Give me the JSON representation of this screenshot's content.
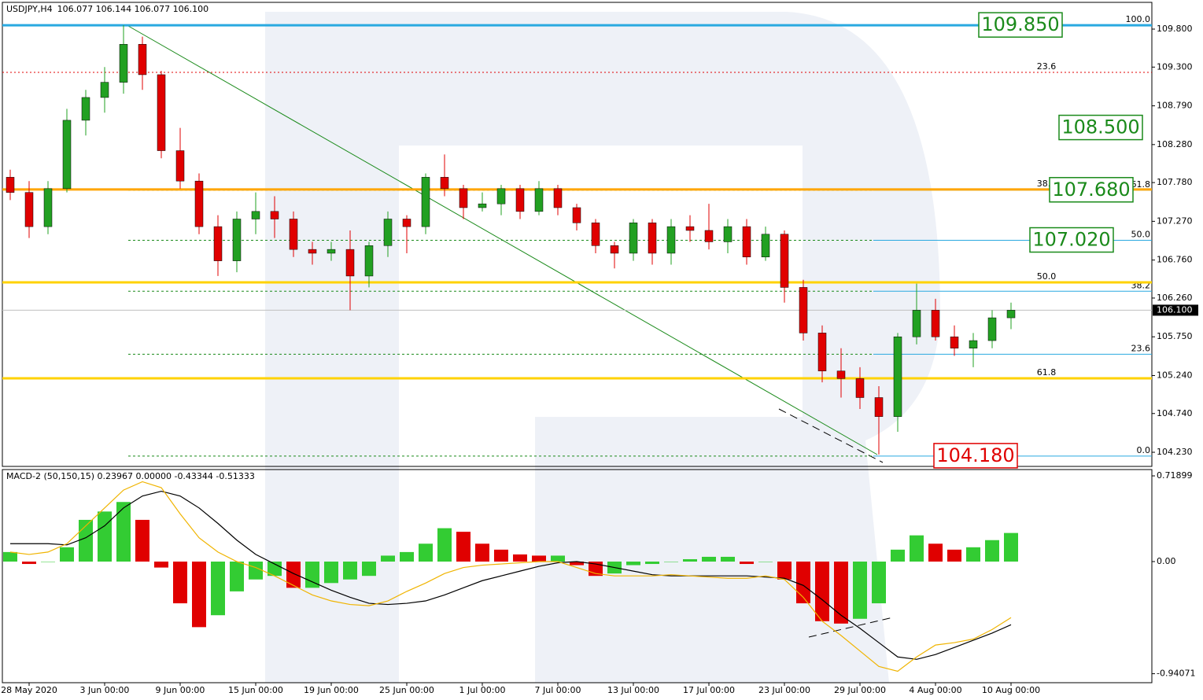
{
  "chart_data": [
    {
      "type": "candlestick",
      "title": "USDJPY,H4",
      "quote": "106.077 106.144 106.077 106.100",
      "categories": [
        null,
        "28 May 2020",
        null,
        null,
        null,
        "3 Jun 00:00",
        null,
        null,
        null,
        "9 Jun 00:00",
        null,
        null,
        null,
        "15 Jun 00:00",
        null,
        null,
        null,
        "19 Jun 00:00",
        null,
        null,
        null,
        "25 Jun 00:00",
        null,
        null,
        null,
        "1 Jul 00:00",
        null,
        null,
        null,
        "7 Jul 00:00",
        null,
        null,
        null,
        "13 Jul 00:00",
        null,
        null,
        null,
        "17 Jul 00:00",
        null,
        null,
        null,
        "23 Jul 00:00",
        null,
        null,
        null,
        "29 Jul 00:00",
        null,
        null,
        null,
        "4 Aug 00:00",
        null,
        null,
        null,
        "10 Aug 00:00"
      ],
      "open": [
        107.85,
        107.65,
        107.2,
        107.7,
        108.6,
        108.9,
        109.1,
        109.6,
        109.2,
        108.2,
        107.8,
        107.2,
        106.75,
        107.3,
        107.4,
        107.3,
        106.9,
        106.85,
        106.9,
        106.55,
        106.95,
        107.3,
        107.2,
        107.85,
        107.7,
        107.45,
        107.5,
        107.7,
        107.4,
        107.7,
        107.45,
        107.25,
        106.95,
        106.85,
        107.25,
        106.85,
        107.2,
        107.15,
        107.0,
        107.2,
        106.8,
        107.1,
        106.4,
        105.8,
        105.3,
        105.2,
        104.95,
        104.7,
        105.75,
        106.1,
        105.75,
        105.6,
        105.7,
        106.0
      ],
      "high": [
        107.95,
        107.8,
        107.8,
        108.75,
        109.0,
        109.3,
        109.85,
        109.7,
        109.25,
        108.5,
        107.9,
        107.35,
        107.4,
        107.65,
        107.6,
        107.4,
        107.0,
        107.0,
        107.15,
        107.0,
        107.4,
        107.35,
        107.9,
        108.15,
        107.75,
        107.65,
        107.75,
        107.75,
        107.8,
        107.75,
        107.5,
        107.3,
        107.0,
        107.3,
        107.3,
        107.3,
        107.35,
        107.5,
        107.3,
        107.3,
        107.2,
        107.15,
        106.5,
        105.9,
        105.6,
        105.35,
        105.1,
        105.8,
        106.45,
        106.25,
        105.9,
        105.8,
        106.1,
        106.2
      ],
      "low": [
        107.55,
        107.05,
        107.1,
        107.65,
        108.4,
        108.7,
        108.95,
        109.0,
        108.1,
        107.7,
        107.1,
        106.55,
        106.6,
        107.1,
        107.05,
        106.8,
        106.7,
        106.75,
        106.1,
        106.4,
        106.8,
        106.85,
        107.1,
        107.6,
        107.3,
        107.4,
        107.35,
        107.3,
        107.35,
        107.35,
        107.15,
        106.85,
        106.65,
        106.75,
        106.7,
        106.7,
        107.0,
        106.9,
        106.85,
        106.7,
        106.75,
        106.2,
        105.7,
        105.15,
        104.95,
        104.8,
        104.2,
        104.5,
        105.65,
        105.7,
        105.5,
        105.35,
        105.6,
        105.85
      ],
      "close": [
        107.65,
        107.2,
        107.7,
        108.6,
        108.9,
        109.1,
        109.6,
        109.2,
        108.2,
        107.8,
        107.2,
        106.75,
        107.3,
        107.4,
        107.3,
        106.9,
        106.85,
        106.9,
        106.55,
        106.95,
        107.3,
        107.2,
        107.85,
        107.7,
        107.45,
        107.5,
        107.7,
        107.4,
        107.7,
        107.45,
        107.25,
        106.95,
        106.85,
        107.25,
        106.85,
        107.2,
        107.15,
        107.0,
        107.2,
        106.8,
        107.1,
        106.4,
        105.8,
        105.3,
        105.2,
        104.95,
        104.7,
        105.75,
        106.1,
        105.75,
        105.6,
        105.7,
        106.0,
        106.1
      ],
      "up_color": "#22a022",
      "down_color": "#e00000",
      "ylim": [
        104.044,
        110.152
      ],
      "yticks": [
        {
          "value": 109.8,
          "label": "109.800"
        },
        {
          "value": 109.3,
          "label": "109.300"
        },
        {
          "value": 108.79,
          "label": "108.790"
        },
        {
          "value": 108.28,
          "label": "108.280"
        },
        {
          "value": 107.78,
          "label": "107.780"
        },
        {
          "value": 107.27,
          "label": "107.270"
        },
        {
          "value": 106.76,
          "label": "106.760"
        },
        {
          "value": 106.26,
          "label": "106.260"
        },
        {
          "value": 105.75,
          "label": "105.750"
        },
        {
          "value": 105.24,
          "label": "105.240"
        },
        {
          "value": 104.74,
          "label": "104.740"
        },
        {
          "value": 104.23,
          "label": "104.230"
        }
      ],
      "levels": [
        {
          "value": 109.85,
          "color": "#29a9e0"
        },
        {
          "value": 107.69,
          "color": "#ffa500"
        },
        {
          "value": 106.466,
          "color": "#ffd200"
        },
        {
          "value": 105.203,
          "color": "#ffd200"
        }
      ],
      "fib_left": {
        "color": "#e00000",
        "levels": [
          {
            "label": "23.6",
            "value": 109.23
          },
          {
            "label": "38.2",
            "value": 107.69
          },
          {
            "label": "50.0",
            "value": 106.466
          },
          {
            "label": "61.8",
            "value": 105.203
          }
        ]
      },
      "fib_right": {
        "color": "#1a8a1a",
        "line_color": "#29a9e0",
        "levels": [
          {
            "label": "100.0",
            "value": 109.85
          },
          {
            "label": "61.8",
            "value": 107.68
          },
          {
            "label": "50.0",
            "value": 107.02
          },
          {
            "label": "38.2",
            "value": 106.35
          },
          {
            "label": "23.6",
            "value": 105.52
          },
          {
            "label": "0.0",
            "value": 104.18
          }
        ]
      },
      "price_boxes": [
        {
          "value": 109.85,
          "label": "109.850",
          "color": "#1a8a1a"
        },
        {
          "value": 108.5,
          "label": "108.500",
          "color": "#1a8a1a"
        },
        {
          "value": 107.68,
          "label": "107.680",
          "color": "#1a8a1a"
        },
        {
          "value": 107.02,
          "label": "107.020",
          "color": "#1a8a1a"
        },
        {
          "value": 104.18,
          "label": "104.180",
          "color": "#e00000"
        }
      ],
      "last": {
        "value": 106.1,
        "label": "106.100"
      }
    },
    {
      "type": "macd",
      "title": "MACD-2 (50,150,15) 0.23967 0.00000 -0.43344 -0.51333",
      "ylim": [
        -1.016,
        0.772
      ],
      "yticks": [
        0.71899,
        {
          "value": 0,
          "label": "0.00"
        },
        -0.94071
      ],
      "up_color": "#33cc33",
      "down_color": "#e00000",
      "series": [
        {
          "name": "histogram",
          "values": [
            0.08,
            -0.02,
            0.0,
            0.12,
            0.35,
            0.42,
            0.5,
            0.35,
            -0.05,
            -0.35,
            -0.55,
            -0.45,
            -0.25,
            -0.15,
            -0.12,
            -0.22,
            -0.22,
            -0.18,
            -0.15,
            -0.12,
            0.05,
            0.08,
            0.15,
            0.28,
            0.25,
            0.15,
            0.1,
            0.06,
            0.05,
            0.05,
            -0.03,
            -0.12,
            -0.1,
            -0.03,
            -0.02,
            0.0,
            0.02,
            0.04,
            0.04,
            -0.02,
            0.0,
            -0.15,
            -0.35,
            -0.5,
            -0.52,
            -0.48,
            -0.35,
            0.1,
            0.22,
            0.15,
            0.1,
            0.12,
            0.18,
            0.24
          ]
        },
        {
          "name": "macd",
          "color": "#000000",
          "values": [
            0.15,
            0.15,
            0.15,
            0.14,
            0.2,
            0.3,
            0.45,
            0.55,
            0.59,
            0.55,
            0.45,
            0.32,
            0.18,
            0.06,
            -0.02,
            -0.1,
            -0.17,
            -0.24,
            -0.3,
            -0.35,
            -0.36,
            -0.35,
            -0.33,
            -0.28,
            -0.22,
            -0.16,
            -0.12,
            -0.08,
            -0.04,
            -0.01,
            0.0,
            -0.02,
            -0.05,
            -0.08,
            -0.11,
            -0.12,
            -0.12,
            -0.12,
            -0.12,
            -0.12,
            -0.13,
            -0.14,
            -0.2,
            -0.32,
            -0.45,
            -0.56,
            -0.68,
            -0.8,
            -0.82,
            -0.78,
            -0.72,
            -0.66,
            -0.6,
            -0.53
          ]
        },
        {
          "name": "signal",
          "color": "#f0b400",
          "values": [
            0.08,
            0.06,
            0.08,
            0.15,
            0.3,
            0.45,
            0.6,
            0.67,
            0.62,
            0.4,
            0.2,
            0.08,
            0.0,
            -0.05,
            -0.12,
            -0.2,
            -0.28,
            -0.33,
            -0.36,
            -0.37,
            -0.33,
            -0.25,
            -0.18,
            -0.1,
            -0.05,
            -0.03,
            -0.02,
            -0.01,
            0.0,
            0.0,
            -0.05,
            -0.1,
            -0.12,
            -0.12,
            -0.12,
            -0.11,
            -0.12,
            -0.13,
            -0.14,
            -0.14,
            -0.12,
            -0.15,
            -0.3,
            -0.5,
            -0.62,
            -0.75,
            -0.88,
            -0.92,
            -0.8,
            -0.7,
            -0.68,
            -0.65,
            -0.57,
            -0.47
          ]
        }
      ]
    }
  ]
}
